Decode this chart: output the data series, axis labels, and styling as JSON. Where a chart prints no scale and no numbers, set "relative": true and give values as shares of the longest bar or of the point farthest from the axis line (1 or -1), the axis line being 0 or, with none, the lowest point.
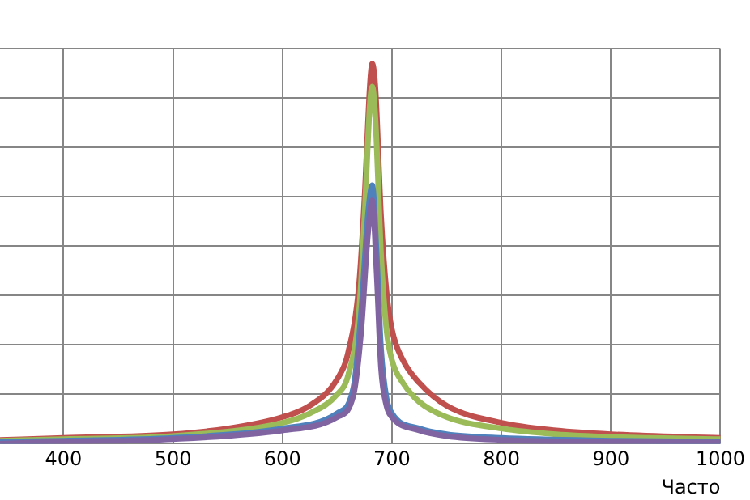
{
  "chart_data": {
    "type": "line",
    "xlabel": "Часто",
    "relative": true,
    "xlim": [
      342,
      1000
    ],
    "xticks": [
      400,
      500,
      600,
      700,
      800,
      900,
      1000
    ],
    "grid": true,
    "legend": false,
    "marker": "none",
    "line_style": "solid",
    "series": [
      {
        "color": "#c0504d",
        "x": [
          342,
          400,
          500,
          550,
          600,
          625,
          650,
          660,
          670,
          675,
          680,
          682,
          685,
          690,
          695,
          700,
          710,
          725,
          750,
          800,
          850,
          900,
          1000
        ],
        "values": [
          0.01,
          0.015,
          0.025,
          0.04,
          0.07,
          0.1,
          0.17,
          0.24,
          0.42,
          0.65,
          0.95,
          1,
          0.93,
          0.6,
          0.4,
          0.3,
          0.22,
          0.16,
          0.1,
          0.055,
          0.035,
          0.025,
          0.015
        ]
      },
      {
        "color": "#9bbb59",
        "x": [
          342,
          400,
          500,
          600,
          625,
          650,
          660,
          670,
          675,
          680,
          682,
          685,
          690,
          695,
          700,
          710,
          725,
          750,
          800,
          850,
          900,
          1000
        ],
        "values": [
          0.008,
          0.012,
          0.02,
          0.055,
          0.08,
          0.13,
          0.18,
          0.35,
          0.6,
          0.9,
          0.94,
          0.85,
          0.5,
          0.3,
          0.22,
          0.16,
          0.11,
          0.07,
          0.04,
          0.025,
          0.018,
          0.012
        ]
      },
      {
        "color": "#4f81bd",
        "x": [
          342,
          400,
          500,
          600,
          650,
          665,
          672,
          678,
          682,
          686,
          690,
          695,
          700,
          725,
          750,
          800,
          900,
          1000
        ],
        "values": [
          0.005,
          0.008,
          0.015,
          0.04,
          0.08,
          0.15,
          0.35,
          0.6,
          0.68,
          0.5,
          0.25,
          0.12,
          0.08,
          0.04,
          0.025,
          0.015,
          0.008,
          0.005
        ]
      },
      {
        "color": "#8064a2",
        "x": [
          342,
          400,
          500,
          600,
          650,
          665,
          672,
          678,
          682,
          686,
          690,
          695,
          700,
          725,
          750,
          800,
          900,
          1000
        ],
        "values": [
          0,
          0.005,
          0.012,
          0.035,
          0.07,
          0.13,
          0.3,
          0.55,
          0.64,
          0.45,
          0.2,
          0.1,
          0.07,
          0.035,
          0.02,
          0.01,
          0.005,
          0.003
        ]
      }
    ]
  }
}
